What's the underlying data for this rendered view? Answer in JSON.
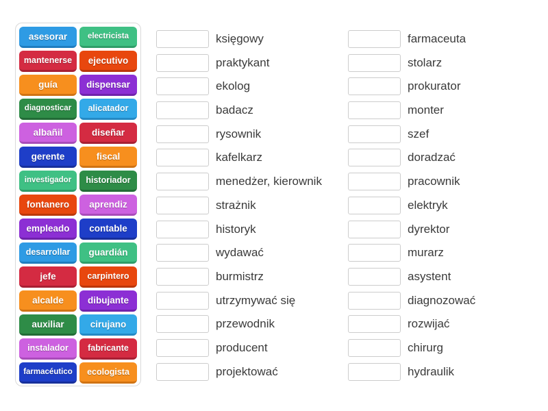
{
  "palette": {
    "blue": {
      "bg": "#2E9BE4",
      "edge": "#1F7DBF"
    },
    "sky": {
      "bg": "#33A9E8",
      "edge": "#2489C4"
    },
    "mint": {
      "bg": "#3FC084",
      "edge": "#2F9D69"
    },
    "forest": {
      "bg": "#2E8C47",
      "edge": "#226B36"
    },
    "crimson": {
      "bg": "#D42B42",
      "edge": "#A81F33"
    },
    "vermillion": {
      "bg": "#E8470E",
      "edge": "#BC370A"
    },
    "orange": {
      "bg": "#F78F1E",
      "edge": "#D07313"
    },
    "violet": {
      "bg": "#8C2FD4",
      "edge": "#6F22AB"
    },
    "orchid": {
      "bg": "#CD61E0",
      "edge": "#A94BBA"
    },
    "darkblue": {
      "bg": "#1E3EC8",
      "edge": "#172F9B"
    }
  },
  "tiles": [
    {
      "label": "asesorar",
      "color": "blue"
    },
    {
      "label": "electricista",
      "color": "mint"
    },
    {
      "label": "mantenerse",
      "color": "crimson"
    },
    {
      "label": "ejecutivo",
      "color": "vermillion"
    },
    {
      "label": "guía",
      "color": "orange"
    },
    {
      "label": "dispensar",
      "color": "violet"
    },
    {
      "label": "diagnosticar",
      "color": "forest"
    },
    {
      "label": "alicatador",
      "color": "sky"
    },
    {
      "label": "albañil",
      "color": "orchid"
    },
    {
      "label": "diseñar",
      "color": "crimson"
    },
    {
      "label": "gerente",
      "color": "darkblue"
    },
    {
      "label": "fiscal",
      "color": "orange"
    },
    {
      "label": "investigador",
      "color": "mint"
    },
    {
      "label": "historiador",
      "color": "forest"
    },
    {
      "label": "fontanero",
      "color": "vermillion"
    },
    {
      "label": "aprendiz",
      "color": "orchid"
    },
    {
      "label": "empleado",
      "color": "violet"
    },
    {
      "label": "contable",
      "color": "darkblue"
    },
    {
      "label": "desarrollar",
      "color": "blue"
    },
    {
      "label": "guardián",
      "color": "mint"
    },
    {
      "label": "jefe",
      "color": "crimson"
    },
    {
      "label": "carpintero",
      "color": "vermillion"
    },
    {
      "label": "alcalde",
      "color": "orange"
    },
    {
      "label": "dibujante",
      "color": "violet"
    },
    {
      "label": "auxiliar",
      "color": "forest"
    },
    {
      "label": "cirujano",
      "color": "sky"
    },
    {
      "label": "instalador",
      "color": "orchid"
    },
    {
      "label": "fabricante",
      "color": "crimson"
    },
    {
      "label": "farmacéutico",
      "color": "darkblue"
    },
    {
      "label": "ecologista",
      "color": "orange"
    }
  ],
  "match_columns": [
    {
      "items": [
        "księgowy",
        "praktykant",
        "ekolog",
        "badacz",
        "rysownik",
        "kafelkarz",
        "menedżer, kierownik",
        "strażnik",
        "historyk",
        "wydawać",
        "burmistrz",
        "utrzymywać się",
        "przewodnik",
        "producent",
        "projektować"
      ]
    },
    {
      "items": [
        "farmaceuta",
        "stolarz",
        "prokurator",
        "monter",
        "szef",
        "doradzać",
        "pracownik",
        "elektryk",
        "dyrektor",
        "murarz",
        "asystent",
        "diagnozować",
        "rozwijać",
        "chirurg",
        "hydraulik"
      ]
    }
  ]
}
